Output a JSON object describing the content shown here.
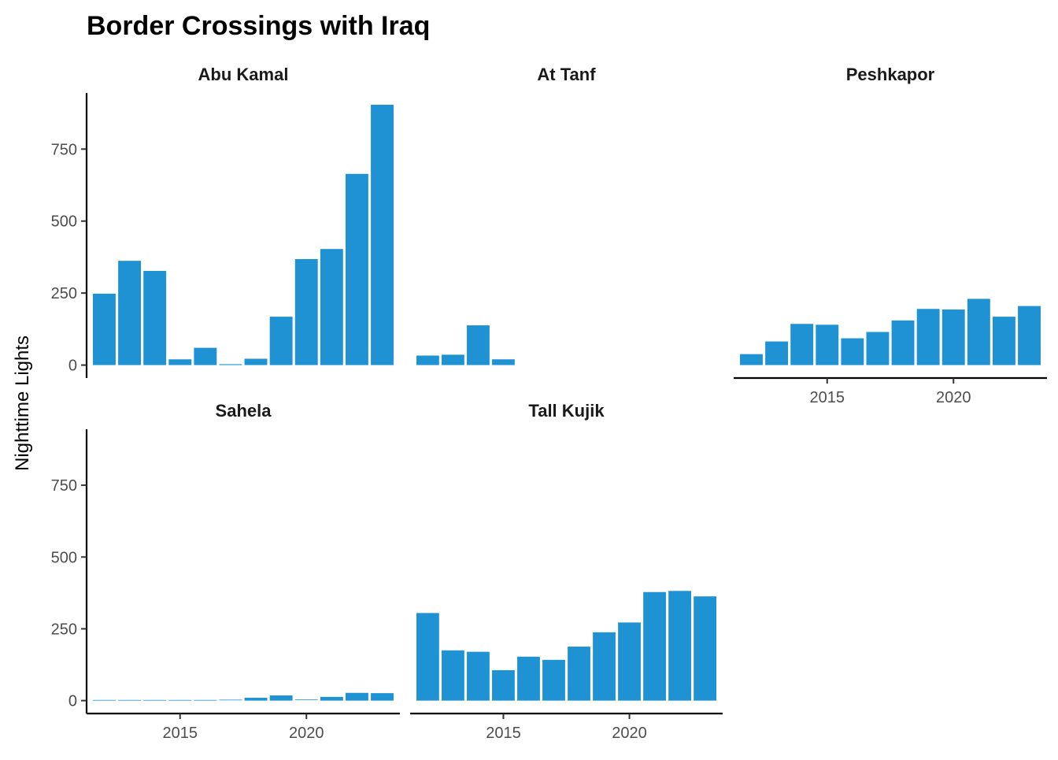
{
  "chart_data": {
    "type": "bar",
    "title": "Border Crossings with Iraq",
    "ylabel": "Nighttime Lights",
    "xlabel": "",
    "ylim": [
      -45,
      945
    ],
    "xlim": [
      2011.3,
      2023.7
    ],
    "y_ticks": [
      0,
      250,
      500,
      750
    ],
    "y_tick_labels": [
      "0",
      "250",
      "500",
      "750"
    ],
    "x_ticks": [
      2015,
      2020
    ],
    "x_tick_labels": [
      "2015",
      "2020"
    ],
    "bar_color": "#1f92d4",
    "x": [
      2012,
      2013,
      2014,
      2015,
      2016,
      2017,
      2018,
      2019,
      2020,
      2021,
      2022,
      2023
    ],
    "panels": [
      {
        "name": "Abu Kamal",
        "values": [
          248,
          362,
          327,
          20,
          60,
          3,
          22,
          168,
          368,
          403,
          664,
          904
        ]
      },
      {
        "name": "At Tanf",
        "values": [
          33,
          36,
          138,
          20,
          null,
          null,
          null,
          null,
          null,
          null,
          null,
          null
        ]
      },
      {
        "name": "Peshkapor",
        "values": [
          38,
          82,
          143,
          140,
          93,
          115,
          155,
          195,
          193,
          230,
          168,
          205
        ]
      },
      {
        "name": "Sahela",
        "values": [
          0,
          0,
          0,
          0,
          0,
          1,
          10,
          18,
          2,
          13,
          27,
          26
        ]
      },
      {
        "name": "Tall Kujik",
        "values": [
          305,
          175,
          170,
          106,
          153,
          142,
          188,
          238,
          272,
          378,
          382,
          363
        ]
      }
    ]
  }
}
